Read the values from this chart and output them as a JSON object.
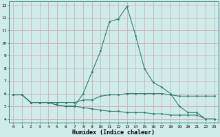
{
  "xlabel": "Humidex (Indice chaleur)",
  "x_values": [
    0,
    1,
    2,
    3,
    4,
    5,
    6,
    7,
    8,
    9,
    10,
    11,
    12,
    13,
    14,
    15,
    16,
    17,
    18,
    19,
    20,
    21,
    22,
    23
  ],
  "line1": [
    5.9,
    5.9,
    5.3,
    5.3,
    5.3,
    5.3,
    5.3,
    5.3,
    5.5,
    5.5,
    5.8,
    5.9,
    5.9,
    6.0,
    6.0,
    6.0,
    6.0,
    6.0,
    5.9,
    5.8,
    5.8,
    5.8,
    5.8,
    5.8
  ],
  "line2": [
    5.9,
    5.9,
    5.3,
    5.3,
    5.3,
    5.1,
    5.0,
    5.0,
    6.0,
    7.7,
    9.4,
    11.7,
    11.9,
    12.9,
    10.6,
    8.0,
    6.9,
    6.5,
    6.0,
    5.0,
    4.5,
    4.5,
    4.0,
    4.0
  ],
  "line3": [
    5.9,
    5.9,
    5.3,
    5.3,
    5.3,
    5.1,
    5.0,
    5.0,
    4.9,
    4.8,
    4.7,
    4.6,
    4.6,
    4.5,
    4.5,
    4.5,
    4.4,
    4.4,
    4.3,
    4.3,
    4.3,
    4.3,
    4.0,
    4.0
  ],
  "line_color": "#2e7d6e",
  "bg_color": "#d0ecea",
  "grid_color": "#c8a8a8",
  "ylim": [
    3.7,
    13.3
  ],
  "xlim": [
    -0.5,
    23.5
  ],
  "yticks": [
    4,
    5,
    6,
    7,
    8,
    9,
    10,
    11,
    12,
    13
  ],
  "xticks": [
    0,
    1,
    2,
    3,
    4,
    5,
    6,
    7,
    8,
    9,
    10,
    11,
    12,
    13,
    14,
    15,
    16,
    17,
    18,
    19,
    20,
    21,
    22,
    23
  ],
  "tick_fontsize": 4.5,
  "xlabel_fontsize": 6.0
}
